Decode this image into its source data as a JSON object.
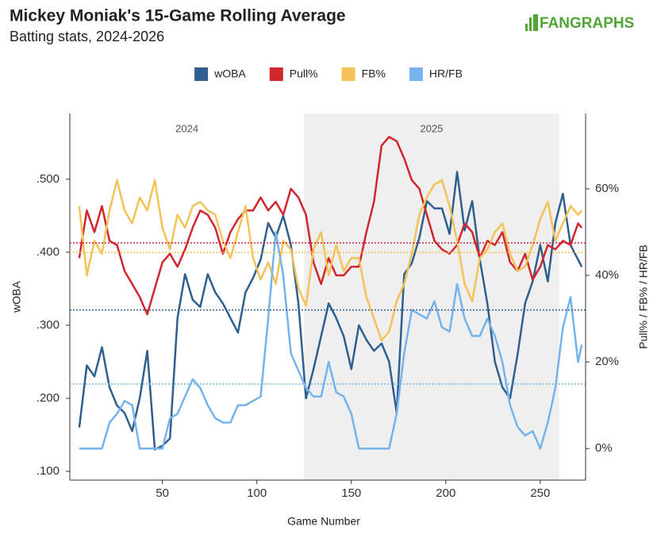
{
  "chart_data": {
    "type": "line",
    "title": "Mickey Moniak's 15-Game Rolling Average",
    "subtitle": "Batting stats, 2024-2026",
    "logo": "FANGRAPHS",
    "x_label": "Game Number",
    "y_label": "wOBA",
    "y2_label": "Pull% / FB% / HR/FB",
    "xlim": [
      1,
      274
    ],
    "xticks": [
      50,
      100,
      150,
      200,
      250
    ],
    "ylim": [
      0.088,
      0.59
    ],
    "yticks": [
      {
        "value": 0.1,
        "label": ".100"
      },
      {
        "value": 0.2,
        "label": ".200"
      },
      {
        "value": 0.3,
        "label": ".300"
      },
      {
        "value": 0.4,
        "label": ".400"
      },
      {
        "value": 0.5,
        "label": ".500"
      }
    ],
    "y2lim": [
      -7.3,
      77.4
    ],
    "y2ticks": [
      {
        "value": 0,
        "label": "0%"
      },
      {
        "value": 20,
        "label": "20%"
      },
      {
        "value": 40,
        "label": "40%"
      },
      {
        "value": 60,
        "label": "60%"
      }
    ],
    "seasons": [
      {
        "label": "2024",
        "start": 1,
        "end": 125,
        "shaded": false
      },
      {
        "label": "2025",
        "start": 125,
        "end": 260,
        "shaded": true
      }
    ],
    "x": [
      6,
      10,
      14,
      18,
      22,
      26,
      30,
      34,
      38,
      42,
      46,
      50,
      54,
      58,
      62,
      66,
      70,
      74,
      78,
      82,
      86,
      90,
      94,
      98,
      102,
      106,
      110,
      114,
      118,
      122,
      126,
      130,
      134,
      138,
      142,
      146,
      150,
      154,
      158,
      162,
      166,
      170,
      174,
      178,
      182,
      186,
      190,
      194,
      198,
      202,
      206,
      210,
      214,
      218,
      222,
      226,
      230,
      234,
      238,
      242,
      246,
      250,
      254,
      258,
      262,
      266,
      270,
      272
    ],
    "series": [
      {
        "name": "wOBA",
        "color": "#2e5f8e",
        "axis": "y",
        "mean": 0.321,
        "values": [
          0.16,
          0.245,
          0.23,
          0.27,
          0.215,
          0.19,
          0.18,
          0.155,
          0.2,
          0.265,
          0.13,
          0.135,
          0.145,
          0.31,
          0.37,
          0.335,
          0.325,
          0.37,
          0.345,
          0.33,
          0.31,
          0.29,
          0.345,
          0.365,
          0.39,
          0.44,
          0.42,
          0.45,
          0.41,
          0.33,
          0.2,
          0.24,
          0.285,
          0.33,
          0.31,
          0.285,
          0.24,
          0.3,
          0.28,
          0.265,
          0.275,
          0.25,
          0.18,
          0.37,
          0.385,
          0.42,
          0.47,
          0.46,
          0.46,
          0.425,
          0.51,
          0.43,
          0.47,
          0.39,
          0.33,
          0.25,
          0.215,
          0.2,
          0.26,
          0.33,
          0.36,
          0.41,
          0.36,
          0.44,
          0.48,
          0.41,
          0.39,
          0.38
        ]
      },
      {
        "name": "Pull%",
        "color": "#d2262f",
        "axis": "y2",
        "mean": 47.5,
        "values": [
          44,
          55,
          50,
          56,
          48,
          47,
          41,
          38,
          35,
          31,
          37,
          43,
          45,
          42,
          46,
          51,
          55,
          54,
          51,
          45,
          50,
          53,
          55,
          55,
          58,
          55,
          57,
          54,
          60,
          58,
          54,
          43,
          38,
          44,
          40,
          40,
          42,
          42,
          50,
          57,
          70,
          72,
          71,
          67,
          62,
          60,
          54,
          48,
          46,
          45,
          47,
          52,
          50,
          44,
          48,
          47,
          50,
          43,
          41,
          45,
          39,
          42,
          47,
          46,
          48,
          47,
          52,
          51
        ]
      },
      {
        "name": "FB%",
        "color": "#f5c257",
        "axis": "y2",
        "mean": 45.3,
        "values": [
          56,
          40,
          48,
          45,
          55,
          62,
          55,
          52,
          58,
          55,
          62,
          51,
          46,
          54,
          51,
          56,
          57,
          55,
          54,
          48,
          44,
          50,
          56,
          44,
          39,
          43,
          38,
          48,
          46,
          37,
          33,
          46,
          50,
          40,
          47,
          41,
          44,
          44,
          35,
          30,
          25,
          27,
          34,
          38,
          45,
          54,
          58,
          61,
          62,
          56,
          48,
          38,
          34,
          44,
          46,
          50,
          52,
          45,
          41,
          42,
          47,
          53,
          57,
          48,
          52,
          56,
          54,
          55
        ]
      },
      {
        "name": "HR/FB",
        "color": "#74b3ec",
        "axis": "y2",
        "mean": 14.9,
        "values": [
          0,
          0,
          0,
          0,
          6,
          8,
          11,
          10,
          0,
          0,
          0,
          0,
          7,
          8,
          12,
          16,
          14,
          10,
          7,
          6,
          6,
          10,
          10,
          11,
          12,
          30,
          50,
          40,
          22,
          18,
          14,
          12,
          12,
          20,
          13,
          12,
          8,
          0,
          0,
          0,
          0,
          0,
          8,
          22,
          32,
          31,
          30,
          34,
          28,
          27,
          38,
          30,
          26,
          26,
          30,
          26,
          20,
          10,
          5,
          3,
          4,
          0,
          6,
          14,
          28,
          35,
          20,
          24
        ]
      }
    ]
  }
}
